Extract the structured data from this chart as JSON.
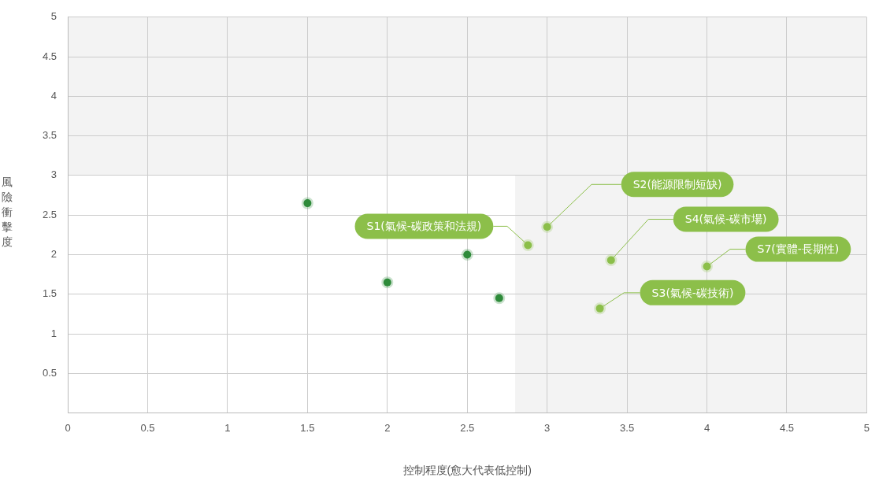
{
  "chart_data": {
    "type": "scatter",
    "xlabel": "控制程度(愈大代表低控制)",
    "ylabel": "風險衝擊度",
    "series": [
      {
        "color": "#2e8b3a",
        "x": [
          1.5,
          2,
          2.5,
          2.7
        ],
        "values": [
          2.65,
          1.65,
          2.0,
          1.45
        ]
      },
      {
        "color": "#8cbf4a",
        "x": [
          2.88,
          3.0,
          3.4,
          4.0,
          3.33
        ],
        "values": [
          2.12,
          2.35,
          1.93,
          1.85,
          1.32
        ]
      }
    ],
    "xlim": [
      0,
      5
    ],
    "xticks": [
      0,
      0.5,
      1,
      1.5,
      2,
      2.5,
      3,
      3.5,
      4,
      4.5,
      5
    ],
    "ylim": [
      0,
      5
    ],
    "yticks": [
      {
        "value": 0,
        "label": null
      },
      0.5,
      1,
      1.5,
      2,
      2.5,
      3,
      3.5,
      4,
      4.5,
      5
    ],
    "bands": [
      {
        "axis": "y",
        "from": 3,
        "to": 5,
        "color": "#f3f3f3"
      },
      {
        "axis": "x",
        "from": 2.8,
        "to": 5,
        "color": "#f3f3f3"
      }
    ],
    "annotations": [
      {
        "text": "S1(氣候-碳政策和法規)",
        "x": 2.88,
        "y": 2.12
      },
      {
        "text": "S2(能源限制短缺)",
        "x": 3.0,
        "y": 2.35
      },
      {
        "text": "S4(氣候-碳市場)",
        "x": 3.4,
        "y": 1.93
      },
      {
        "text": "S7(實體-長期性)",
        "x": 4.0,
        "y": 1.85
      },
      {
        "text": "S3(氣候-碳技術)",
        "x": 3.33,
        "y": 1.32
      }
    ],
    "grid": true,
    "marker": "circle"
  }
}
